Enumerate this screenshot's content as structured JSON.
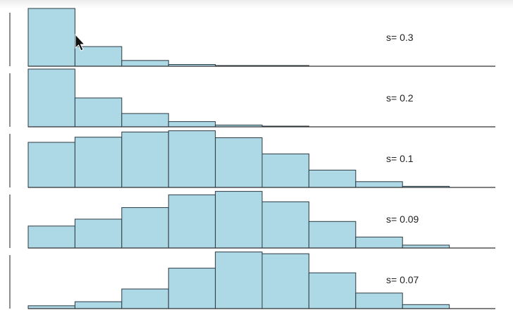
{
  "chart_data": [
    {
      "type": "bar",
      "label": "s= 0.3",
      "values": [
        1.0,
        0.34,
        0.1,
        0.03,
        0.01,
        0.005,
        0.0,
        0.0,
        0.0,
        0.0
      ]
    },
    {
      "type": "bar",
      "label": "s= 0.2",
      "values": [
        1.0,
        0.5,
        0.23,
        0.09,
        0.03,
        0.01,
        0.0,
        0.0,
        0.0,
        0.0
      ]
    },
    {
      "type": "bar",
      "label": "s= 0.1",
      "values": [
        0.78,
        0.87,
        0.96,
        0.98,
        0.86,
        0.58,
        0.3,
        0.1,
        0.02,
        0.0
      ]
    },
    {
      "type": "bar",
      "label": "s= 0.09",
      "values": [
        0.38,
        0.5,
        0.7,
        0.92,
        0.98,
        0.8,
        0.46,
        0.19,
        0.05,
        0.0
      ]
    },
    {
      "type": "bar",
      "label": "s= 0.07",
      "values": [
        0.05,
        0.12,
        0.34,
        0.7,
        0.98,
        0.95,
        0.62,
        0.27,
        0.07,
        0.0
      ]
    }
  ]
}
